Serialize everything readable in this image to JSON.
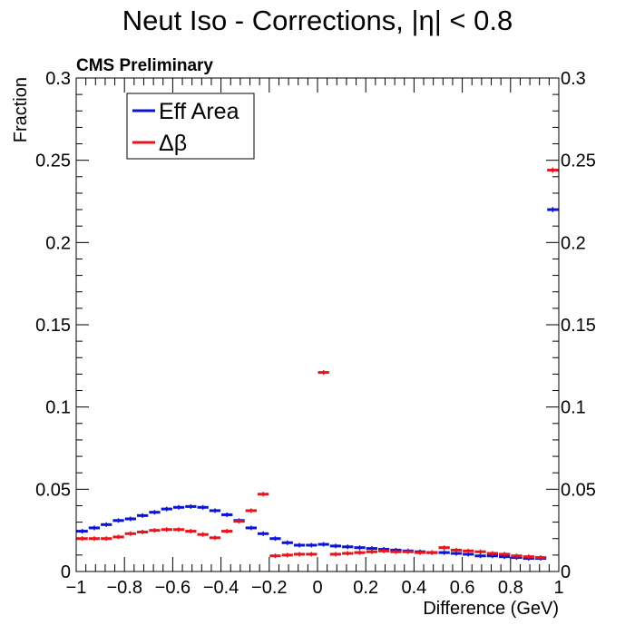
{
  "header": {
    "title": "Neut Iso - Corrections, |η| < 0.8",
    "label": "CMS Preliminary"
  },
  "colors": {
    "series_1": "#0a14d4",
    "series_2": "#e8141c",
    "axes": "#000000"
  },
  "chart_data": {
    "type": "bar",
    "xlabel": "Difference (GeV)",
    "ylabel": "Fraction",
    "xlim": [
      -1,
      1
    ],
    "ylim": [
      0,
      0.3
    ],
    "x_tick_labels": [
      "−1",
      "−0.8",
      "−0.6",
      "−0.4",
      "−0.2",
      "0",
      "0.2",
      "0.4",
      "0.6",
      "0.8",
      "1"
    ],
    "y_tick_labels": [
      "0",
      "0.05",
      "0.1",
      "0.15",
      "0.2",
      "0.25",
      "0.3"
    ],
    "legend_position": "top-left",
    "bin_edges": [
      -1,
      -0.95,
      -0.9,
      -0.85,
      -0.8,
      -0.75,
      -0.7,
      -0.65,
      -0.6,
      -0.55,
      -0.5,
      -0.45,
      -0.4,
      -0.35,
      -0.3,
      -0.25,
      -0.2,
      -0.15,
      -0.1,
      -0.05,
      0,
      0.05,
      0.1,
      0.15,
      0.2,
      0.25,
      0.3,
      0.35,
      0.4,
      0.45,
      0.5,
      0.55,
      0.6,
      0.65,
      0.7,
      0.75,
      0.8,
      0.85,
      0.9,
      0.95,
      1
    ],
    "series": [
      {
        "name": "Eff Area",
        "values": [
          0.0245,
          0.0265,
          0.0285,
          0.031,
          0.032,
          0.034,
          0.036,
          0.038,
          0.039,
          0.0395,
          0.039,
          0.037,
          0.0345,
          0.031,
          0.0265,
          0.023,
          0.02,
          0.0175,
          0.016,
          0.016,
          0.0165,
          0.0155,
          0.015,
          0.0145,
          0.014,
          0.0135,
          0.013,
          0.0125,
          0.012,
          0.0115,
          0.0115,
          0.011,
          0.0105,
          0.0095,
          0.0095,
          0.009,
          0.0085,
          0.008,
          0.008,
          0.22
        ]
      },
      {
        "name": "Δβ",
        "values": [
          0.02,
          0.02,
          0.02,
          0.021,
          0.023,
          0.024,
          0.025,
          0.0255,
          0.0255,
          0.0245,
          0.0225,
          0.0205,
          0.0245,
          0.0305,
          0.037,
          0.047,
          0.0095,
          0.01,
          0.0105,
          0.0105,
          0.121,
          0.0105,
          0.011,
          0.0115,
          0.012,
          0.0125,
          0.012,
          0.012,
          0.0115,
          0.0115,
          0.0145,
          0.013,
          0.0125,
          0.012,
          0.011,
          0.0105,
          0.0095,
          0.009,
          0.0085,
          0.244
        ]
      }
    ]
  }
}
